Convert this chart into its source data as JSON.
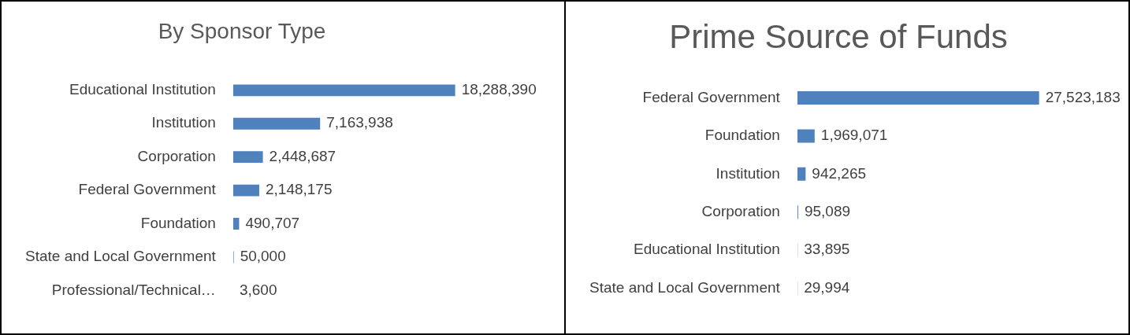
{
  "chart_data": [
    {
      "type": "bar",
      "orientation": "horizontal",
      "title": "By Sponsor Type",
      "categories": [
        "Educational Institution",
        "Institution",
        "Corporation",
        "Federal Government",
        "Foundation",
        "State and Local Government",
        "Professional/Technical…"
      ],
      "series": [
        {
          "color": "#4f81bd",
          "values": [
            18288390,
            7163938,
            2448687,
            2148175,
            490707,
            50000,
            3600
          ],
          "value_labels": [
            "18,288,390",
            "7,163,938",
            "2,448,687",
            "2,148,175",
            "490,707",
            "50,000",
            "3,600"
          ]
        }
      ],
      "tick_labels": "y",
      "legend": false
    },
    {
      "type": "bar",
      "orientation": "horizontal",
      "title": "Prime Source of Funds",
      "categories": [
        "Federal Government",
        "Foundation",
        "Institution",
        "Corporation",
        "Educational Institution",
        "State and Local Government"
      ],
      "series": [
        {
          "color": "#4f81bd",
          "values": [
            27523183,
            1969071,
            942265,
            95089,
            33895,
            29994
          ],
          "value_labels": [
            "27,523,183",
            "1,969,071",
            "942,265",
            "95,089",
            "33,895",
            "29,994"
          ]
        }
      ],
      "tick_labels": "y",
      "legend": false
    }
  ]
}
